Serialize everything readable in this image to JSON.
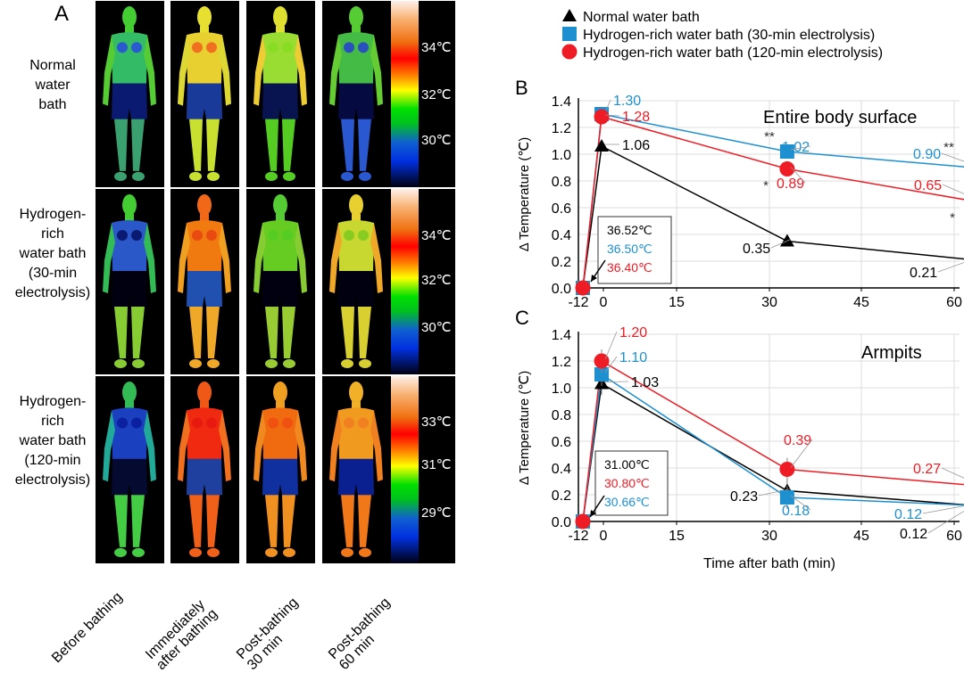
{
  "panel_a": {
    "letter": "A",
    "row_labels": [
      [
        "Normal",
        "water",
        "bath"
      ],
      [
        "Hydrogen-",
        "rich",
        "water bath",
        "(30-min",
        "electrolysis)"
      ],
      [
        "Hydrogen-",
        "rich",
        "water bath",
        "(120-min",
        "electrolysis)"
      ]
    ],
    "column_labels": [
      [
        "Before bathing"
      ],
      [
        "Immediately",
        "after bathing"
      ],
      [
        "Post-bathing",
        "30 min"
      ],
      [
        "Post-bathing",
        "60 min"
      ]
    ],
    "colorbar_labels": [
      [
        "34℃",
        "32℃",
        "30℃"
      ],
      [
        "34℃",
        "32℃",
        "30℃"
      ],
      [
        "33℃",
        "31℃",
        "29℃"
      ]
    ]
  },
  "legend": [
    {
      "label": "Normal water bath",
      "marker": "triangle",
      "color": "#000000"
    },
    {
      "label": "Hydrogen-rich water bath (30-min electrolysis)",
      "marker": "square",
      "color": "#1e90d0"
    },
    {
      "label": "Hydrogen-rich water bath (120-min electrolysis)",
      "marker": "circle",
      "color": "#ee1c24"
    }
  ],
  "chart_data": [
    {
      "type": "line",
      "panel": "B",
      "title": "Entire body surface",
      "xlabel": "",
      "ylabel": "Δ Temperature (℃)",
      "x_ticks": [
        "-12",
        "0",
        "15",
        "30",
        "45",
        "60"
      ],
      "y_ticks": [
        "0.0",
        "0.2",
        "0.4",
        "0.6",
        "0.8",
        "1.0",
        "1.2",
        "1.4"
      ],
      "ylim": [
        0,
        1.4
      ],
      "grid": true,
      "x": [
        -12,
        0,
        30,
        60
      ],
      "series": [
        {
          "name": "Normal water bath",
          "values": [
            0,
            1.06,
            0.35,
            0.21
          ],
          "labels": [
            "",
            "1.06",
            "0.35",
            "0.21"
          ],
          "color": "#000000",
          "marker": "triangle"
        },
        {
          "name": "Hydrogen-rich water bath (30-min electrolysis)",
          "values": [
            0,
            1.3,
            1.02,
            0.9
          ],
          "labels": [
            "",
            "1.30",
            "1.02",
            "0.90"
          ],
          "color": "#1e90d0",
          "marker": "square"
        },
        {
          "name": "Hydrogen-rich water bath (120-min electrolysis)",
          "values": [
            0,
            1.28,
            0.89,
            0.65
          ],
          "labels": [
            "",
            "1.28",
            "0.89",
            "0.65"
          ],
          "color": "#ee1c24",
          "marker": "circle"
        }
      ],
      "significance": [
        {
          "text": "**",
          "series": 1,
          "x": 30
        },
        {
          "text": "*",
          "series": 2,
          "x": 30
        },
        {
          "text": "**",
          "series": 1,
          "x": 60
        },
        {
          "text": "*",
          "series": 2,
          "x": 60
        }
      ],
      "baseline_box": [
        {
          "text": "36.52℃",
          "color": "#000000"
        },
        {
          "text": "36.50℃",
          "color": "#1e90d0"
        },
        {
          "text": "36.40℃",
          "color": "#ee1c24"
        }
      ]
    },
    {
      "type": "line",
      "panel": "C",
      "title": "Armpits",
      "xlabel": "Time after bath (min)",
      "ylabel": "Δ Temperature (℃)",
      "x_ticks": [
        "-12",
        "0",
        "15",
        "30",
        "45",
        "60"
      ],
      "y_ticks": [
        "0.0",
        "0.2",
        "0.4",
        "0.6",
        "0.8",
        "1.0",
        "1.2",
        "1.4"
      ],
      "ylim": [
        0,
        1.4
      ],
      "grid": true,
      "x": [
        -12,
        0,
        30,
        60
      ],
      "series": [
        {
          "name": "Normal water bath",
          "values": [
            0,
            1.03,
            0.23,
            0.12
          ],
          "labels": [
            "",
            "1.03",
            "0.23",
            "0.12"
          ],
          "color": "#000000",
          "marker": "triangle"
        },
        {
          "name": "Hydrogen-rich water bath (30-min electrolysis)",
          "values": [
            0,
            1.1,
            0.18,
            0.12
          ],
          "labels": [
            "",
            "1.10",
            "0.18",
            "0.12"
          ],
          "color": "#1e90d0",
          "marker": "square"
        },
        {
          "name": "Hydrogen-rich water bath (120-min electrolysis)",
          "values": [
            0,
            1.2,
            0.39,
            0.27
          ],
          "labels": [
            "",
            "1.20",
            "0.39",
            "0.27"
          ],
          "color": "#ee1c24",
          "marker": "circle"
        }
      ],
      "significance": [],
      "baseline_box": [
        {
          "text": "31.00℃",
          "color": "#000000"
        },
        {
          "text": "30.80℃",
          "color": "#ee1c24"
        },
        {
          "text": "30.66℃",
          "color": "#1e90d0"
        }
      ]
    }
  ]
}
